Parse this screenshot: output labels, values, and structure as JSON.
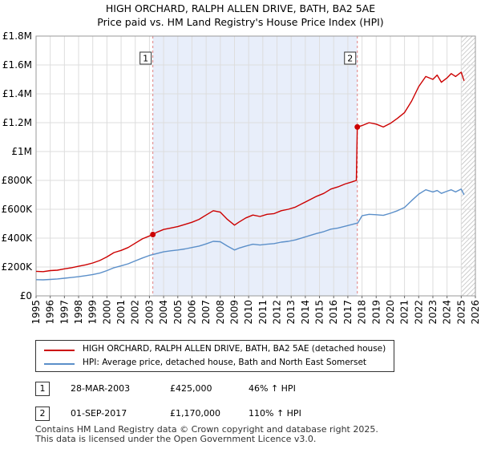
{
  "title": "HIGH ORCHARD, RALPH ALLEN DRIVE, BATH, BA2 5AE",
  "subtitle": "Price paid vs. HM Land Registry's House Price Index (HPI)",
  "colors": {
    "property_line": "#cc0000",
    "hpi_line": "#5b8fc9",
    "shade": "#e8eefa",
    "vline": "#e08080",
    "grid": "#dddddd"
  },
  "chart_data": {
    "type": "line",
    "title": "HIGH ORCHARD, RALPH ALLEN DRIVE, BATH, BA2 5AE",
    "subtitle": "Price paid vs. HM Land Registry's House Price Index (HPI)",
    "xlabel": "",
    "ylabel": "",
    "xlim": [
      1995,
      2026
    ],
    "ylim": [
      0,
      1800000
    ],
    "y_ticks": [
      0,
      200000,
      400000,
      600000,
      800000,
      1000000,
      1200000,
      1400000,
      1600000,
      1800000
    ],
    "y_tick_labels": [
      "£0",
      "£200K",
      "£400K",
      "£600K",
      "£800K",
      "£1M",
      "£1.2M",
      "£1.4M",
      "£1.6M",
      "£1.8M"
    ],
    "x_ticks": [
      1995,
      1996,
      1997,
      1998,
      1999,
      2000,
      2001,
      2002,
      2003,
      2004,
      2005,
      2006,
      2007,
      2008,
      2009,
      2010,
      2011,
      2012,
      2013,
      2014,
      2015,
      2016,
      2017,
      2018,
      2019,
      2020,
      2021,
      2022,
      2023,
      2024,
      2025,
      2026
    ],
    "grid": true,
    "shaded_region": [
      2003.24,
      2017.67
    ],
    "forecast_start": 2025.0,
    "series": [
      {
        "name": "HIGH ORCHARD, RALPH ALLEN DRIVE, BATH, BA2 5AE (detached house)",
        "color": "#cc0000",
        "x": [
          1995.0,
          1995.5,
          1996.0,
          1996.5,
          1997.0,
          1997.5,
          1998.0,
          1998.5,
          1999.0,
          1999.5,
          2000.0,
          2000.5,
          2001.0,
          2001.5,
          2002.0,
          2002.5,
          2003.0,
          2003.24,
          2003.5,
          2004.0,
          2004.5,
          2005.0,
          2005.5,
          2006.0,
          2006.5,
          2007.0,
          2007.5,
          2008.0,
          2008.5,
          2009.0,
          2009.3,
          2009.8,
          2010.3,
          2010.8,
          2011.3,
          2011.8,
          2012.3,
          2012.8,
          2013.3,
          2013.8,
          2014.3,
          2014.8,
          2015.3,
          2015.8,
          2016.3,
          2016.8,
          2017.3,
          2017.6,
          2017.67,
          2018.0,
          2018.5,
          2019.0,
          2019.5,
          2020.0,
          2020.5,
          2021.0,
          2021.5,
          2022.0,
          2022.5,
          2023.0,
          2023.3,
          2023.6,
          2024.0,
          2024.3,
          2024.6,
          2025.0,
          2025.2
        ],
        "values": [
          170000,
          168000,
          175000,
          178000,
          187000,
          195000,
          205000,
          215000,
          228000,
          245000,
          270000,
          300000,
          315000,
          335000,
          365000,
          395000,
          415000,
          425000,
          440000,
          460000,
          470000,
          480000,
          495000,
          510000,
          530000,
          560000,
          590000,
          580000,
          530000,
          490000,
          510000,
          540000,
          560000,
          550000,
          565000,
          570000,
          590000,
          600000,
          615000,
          640000,
          665000,
          690000,
          710000,
          740000,
          755000,
          775000,
          790000,
          800000,
          1170000,
          1180000,
          1200000,
          1190000,
          1170000,
          1195000,
          1230000,
          1270000,
          1350000,
          1450000,
          1520000,
          1500000,
          1530000,
          1480000,
          1510000,
          1540000,
          1520000,
          1550000,
          1490000
        ]
      },
      {
        "name": "HPI: Average price, detached house, Bath and North East Somerset",
        "color": "#5b8fc9",
        "x": [
          1995.0,
          1995.5,
          1996.0,
          1996.5,
          1997.0,
          1997.5,
          1998.0,
          1998.5,
          1999.0,
          1999.5,
          2000.0,
          2000.5,
          2001.0,
          2001.5,
          2002.0,
          2002.5,
          2003.0,
          2003.5,
          2004.0,
          2004.5,
          2005.0,
          2005.5,
          2006.0,
          2006.5,
          2007.0,
          2007.5,
          2008.0,
          2008.5,
          2009.0,
          2009.3,
          2009.8,
          2010.3,
          2010.8,
          2011.3,
          2011.8,
          2012.3,
          2012.8,
          2013.3,
          2013.8,
          2014.3,
          2014.8,
          2015.3,
          2015.8,
          2016.3,
          2016.8,
          2017.3,
          2017.7,
          2018.0,
          2018.5,
          2019.0,
          2019.5,
          2020.0,
          2020.5,
          2021.0,
          2021.5,
          2022.0,
          2022.5,
          2023.0,
          2023.3,
          2023.6,
          2024.0,
          2024.3,
          2024.6,
          2025.0,
          2025.2
        ],
        "values": [
          112000,
          111000,
          114000,
          117000,
          122000,
          127000,
          133000,
          140000,
          148000,
          158000,
          175000,
          195000,
          208000,
          222000,
          242000,
          262000,
          280000,
          293000,
          305000,
          312000,
          318000,
          325000,
          335000,
          345000,
          360000,
          378000,
          375000,
          345000,
          318000,
          330000,
          345000,
          358000,
          352000,
          358000,
          362000,
          372000,
          378000,
          388000,
          402000,
          418000,
          432000,
          445000,
          462000,
          470000,
          482000,
          495000,
          505000,
          555000,
          565000,
          562000,
          558000,
          572000,
          590000,
          612000,
          660000,
          705000,
          735000,
          720000,
          730000,
          710000,
          725000,
          735000,
          720000,
          740000,
          700000
        ]
      }
    ],
    "markers": [
      {
        "label": "1",
        "x": 2003.24,
        "y": 425000
      },
      {
        "label": "2",
        "x": 2017.67,
        "y": 1170000
      }
    ]
  },
  "legend": {
    "property": "HIGH ORCHARD, RALPH ALLEN DRIVE, BATH, BA2 5AE (detached house)",
    "hpi": "HPI: Average price, detached house, Bath and North East Somerset"
  },
  "transactions": [
    {
      "num": "1",
      "date": "28-MAR-2003",
      "price": "£425,000",
      "hpi": "46% ↑ HPI"
    },
    {
      "num": "2",
      "date": "01-SEP-2017",
      "price": "£1,170,000",
      "hpi": "110% ↑ HPI"
    }
  ],
  "footer": {
    "line1": "Contains HM Land Registry data © Crown copyright and database right 2025.",
    "line2": "This data is licensed under the Open Government Licence v3.0."
  }
}
